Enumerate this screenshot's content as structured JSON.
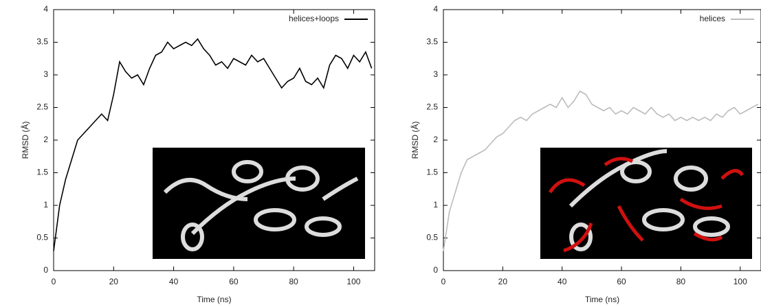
{
  "chart_data": [
    {
      "type": "line",
      "xlabel": "Time (ns)",
      "ylabel": "RMSD (Å)",
      "legend": "upper right",
      "x": [
        0,
        2,
        4,
        6,
        8,
        10,
        12,
        14,
        16,
        18,
        20,
        22,
        24,
        26,
        28,
        30,
        32,
        34,
        36,
        38,
        40,
        42,
        44,
        46,
        48,
        50,
        52,
        54,
        56,
        58,
        60,
        62,
        64,
        66,
        68,
        70,
        72,
        74,
        76,
        78,
        80,
        82,
        84,
        86,
        88,
        90,
        92,
        94,
        96,
        98,
        100,
        102,
        104,
        106
      ],
      "series": [
        {
          "name": "helices+loops",
          "color": "#000000",
          "values": [
            0.3,
            1.0,
            1.4,
            1.7,
            2.0,
            2.1,
            2.2,
            2.3,
            2.4,
            2.3,
            2.7,
            3.2,
            3.05,
            2.95,
            3.0,
            2.85,
            3.1,
            3.3,
            3.35,
            3.5,
            3.4,
            3.45,
            3.5,
            3.45,
            3.55,
            3.4,
            3.3,
            3.15,
            3.2,
            3.1,
            3.25,
            3.2,
            3.15,
            3.3,
            3.2,
            3.25,
            3.1,
            2.95,
            2.8,
            2.9,
            2.95,
            3.1,
            2.9,
            2.85,
            2.95,
            2.8,
            3.15,
            3.3,
            3.25,
            3.1,
            3.3,
            3.2,
            3.35,
            3.1
          ]
        }
      ],
      "xlim": [
        0,
        107
      ],
      "ylim": [
        0,
        4
      ],
      "xticks": [
        0,
        20,
        40,
        60,
        80,
        100
      ],
      "yticks": [
        0,
        0.5,
        1,
        1.5,
        2,
        2.5,
        3,
        3.5,
        4
      ]
    },
    {
      "type": "line",
      "xlabel": "Time (ns)",
      "ylabel": "RMSD (Å)",
      "legend": "upper right",
      "x": [
        0,
        2,
        4,
        6,
        8,
        10,
        12,
        14,
        16,
        18,
        20,
        22,
        24,
        26,
        28,
        30,
        32,
        34,
        36,
        38,
        40,
        42,
        44,
        46,
        48,
        50,
        52,
        54,
        56,
        58,
        60,
        62,
        64,
        66,
        68,
        70,
        72,
        74,
        76,
        78,
        80,
        82,
        84,
        86,
        88,
        90,
        92,
        94,
        96,
        98,
        100,
        102,
        104,
        106
      ],
      "series": [
        {
          "name": "helices",
          "color": "#bbbbbb",
          "values": [
            0.3,
            0.9,
            1.2,
            1.5,
            1.7,
            1.75,
            1.8,
            1.85,
            1.95,
            2.05,
            2.1,
            2.2,
            2.3,
            2.35,
            2.3,
            2.4,
            2.45,
            2.5,
            2.55,
            2.5,
            2.65,
            2.5,
            2.6,
            2.75,
            2.7,
            2.55,
            2.5,
            2.45,
            2.5,
            2.4,
            2.45,
            2.4,
            2.5,
            2.45,
            2.4,
            2.5,
            2.4,
            2.35,
            2.4,
            2.3,
            2.35,
            2.3,
            2.35,
            2.3,
            2.35,
            2.3,
            2.4,
            2.35,
            2.45,
            2.5,
            2.4,
            2.45,
            2.5,
            2.55
          ]
        }
      ],
      "xlim": [
        0,
        107
      ],
      "ylim": [
        0,
        4
      ],
      "xticks": [
        0,
        20,
        40,
        60,
        80,
        100
      ],
      "yticks": [
        0,
        0.5,
        1,
        1.5,
        2,
        2.5,
        3,
        3.5,
        4
      ]
    }
  ]
}
